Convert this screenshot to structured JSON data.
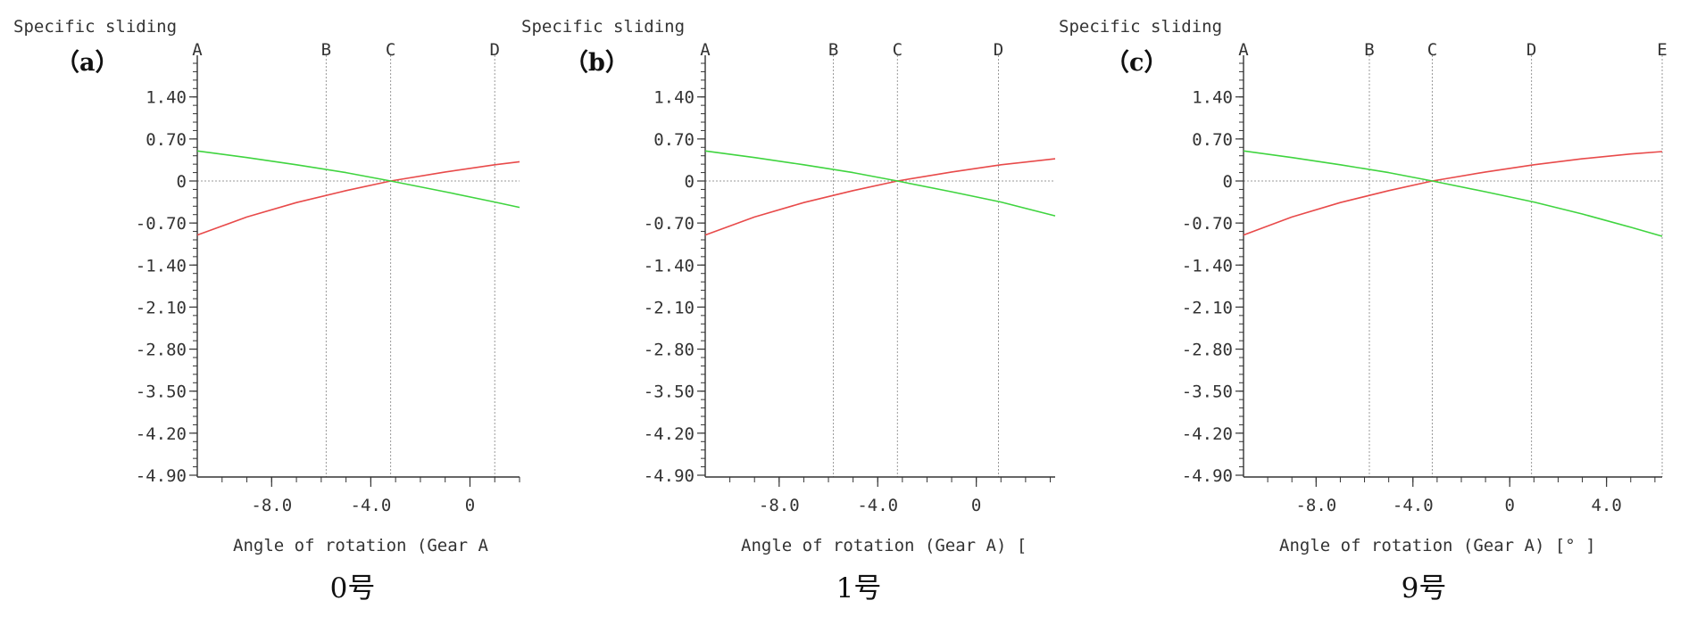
{
  "colors": {
    "background": "#ffffff",
    "axis": "#333333",
    "text": "#333333",
    "grid": "#9a9a9a",
    "series_1": "#e84a4a",
    "series_2": "#3fd43f"
  },
  "chart_data": [
    {
      "type": "line",
      "panel_label": "（a）",
      "ylabel": "Specific sliding",
      "xlabel": "Angle of rotation (Gear A",
      "caption": "0号",
      "xlim": [
        -11.0,
        2.0
      ],
      "ylim": [
        -4.9,
        1.96
      ],
      "yticks": [
        1.4,
        0.7,
        0,
        -0.7,
        -1.4,
        -2.1,
        -2.8,
        -3.5,
        -4.2,
        -4.9
      ],
      "ytick_labels": [
        "1.40",
        "0.70",
        "0",
        "-0.70",
        "-1.40",
        "-2.10",
        "-2.80",
        "-3.50",
        "-4.20",
        "-4.90"
      ],
      "xticks": [
        -8.0,
        -4.0,
        0
      ],
      "xtick_labels": [
        "-8.0",
        "-4.0",
        "0"
      ],
      "markers": [
        {
          "label": "A",
          "x": -11.0
        },
        {
          "label": "B",
          "x": -5.8
        },
        {
          "label": "C",
          "x": -3.2
        },
        {
          "label": "D",
          "x": 1.0
        }
      ],
      "series": [
        {
          "color": "#e84a4a",
          "x": [
            -11.0,
            -9.0,
            -7.0,
            -5.0,
            -3.2,
            -1.0,
            1.0,
            2.0
          ],
          "y": [
            -0.9,
            -0.6,
            -0.36,
            -0.16,
            0,
            0.15,
            0.27,
            0.32
          ]
        },
        {
          "color": "#3fd43f",
          "x": [
            -11.0,
            -9.0,
            -7.0,
            -5.0,
            -3.2,
            -1.0,
            1.0,
            2.0
          ],
          "y": [
            0.5,
            0.39,
            0.27,
            0.14,
            0,
            -0.18,
            -0.35,
            -0.44
          ]
        }
      ]
    },
    {
      "type": "line",
      "panel_label": "（b）",
      "ylabel": "Specific sliding",
      "xlabel": "Angle of rotation (Gear A) [",
      "caption": "1号",
      "xlim": [
        -11.0,
        3.2
      ],
      "ylim": [
        -4.9,
        1.96
      ],
      "yticks": [
        1.4,
        0.7,
        0,
        -0.7,
        -1.4,
        -2.1,
        -2.8,
        -3.5,
        -4.2,
        -4.9
      ],
      "ytick_labels": [
        "1.40",
        "0.70",
        "0",
        "-0.70",
        "-1.40",
        "-2.10",
        "-2.80",
        "-3.50",
        "-4.20",
        "-4.90"
      ],
      "xticks": [
        -8.0,
        -4.0,
        0
      ],
      "xtick_labels": [
        "-8.0",
        "-4.0",
        "0"
      ],
      "markers": [
        {
          "label": "A",
          "x": -11.0
        },
        {
          "label": "B",
          "x": -5.8
        },
        {
          "label": "C",
          "x": -3.2
        },
        {
          "label": "D",
          "x": 0.9
        }
      ],
      "series": [
        {
          "color": "#e84a4a",
          "x": [
            -11.0,
            -9.0,
            -7.0,
            -5.0,
            -3.2,
            -1.0,
            1.0,
            3.2
          ],
          "y": [
            -0.9,
            -0.6,
            -0.36,
            -0.16,
            0,
            0.15,
            0.27,
            0.37
          ]
        },
        {
          "color": "#3fd43f",
          "x": [
            -11.0,
            -9.0,
            -7.0,
            -5.0,
            -3.2,
            -1.0,
            1.0,
            3.2
          ],
          "y": [
            0.5,
            0.39,
            0.27,
            0.14,
            0,
            -0.18,
            -0.35,
            -0.58
          ]
        }
      ]
    },
    {
      "type": "line",
      "panel_label": "（c）",
      "ylabel": "Specific sliding",
      "xlabel": "Angle of rotation (Gear A) [° ]",
      "caption": "9号",
      "xlim": [
        -11.0,
        6.3
      ],
      "ylim": [
        -4.9,
        1.96
      ],
      "yticks": [
        1.4,
        0.7,
        0,
        -0.7,
        -1.4,
        -2.1,
        -2.8,
        -3.5,
        -4.2,
        -4.9
      ],
      "ytick_labels": [
        "1.40",
        "0.70",
        "0",
        "-0.70",
        "-1.40",
        "-2.10",
        "-2.80",
        "-3.50",
        "-4.20",
        "-4.90"
      ],
      "xticks": [
        -8.0,
        -4.0,
        0,
        4.0
      ],
      "xtick_labels": [
        "-8.0",
        "-4.0",
        "0",
        "4.0"
      ],
      "markers": [
        {
          "label": "A",
          "x": -11.0
        },
        {
          "label": "B",
          "x": -5.8
        },
        {
          "label": "C",
          "x": -3.2
        },
        {
          "label": "D",
          "x": 0.9
        },
        {
          "label": "E",
          "x": 6.3
        }
      ],
      "series": [
        {
          "color": "#e84a4a",
          "x": [
            -11.0,
            -9.0,
            -7.0,
            -5.0,
            -3.2,
            -1.0,
            1.0,
            3.0,
            5.0,
            6.3
          ],
          "y": [
            -0.9,
            -0.6,
            -0.36,
            -0.16,
            0,
            0.15,
            0.27,
            0.37,
            0.45,
            0.49
          ]
        },
        {
          "color": "#3fd43f",
          "x": [
            -11.0,
            -9.0,
            -7.0,
            -5.0,
            -3.2,
            -1.0,
            1.0,
            3.0,
            5.0,
            6.3
          ],
          "y": [
            0.5,
            0.39,
            0.27,
            0.14,
            0,
            -0.18,
            -0.35,
            -0.55,
            -0.77,
            -0.92
          ]
        }
      ]
    }
  ]
}
